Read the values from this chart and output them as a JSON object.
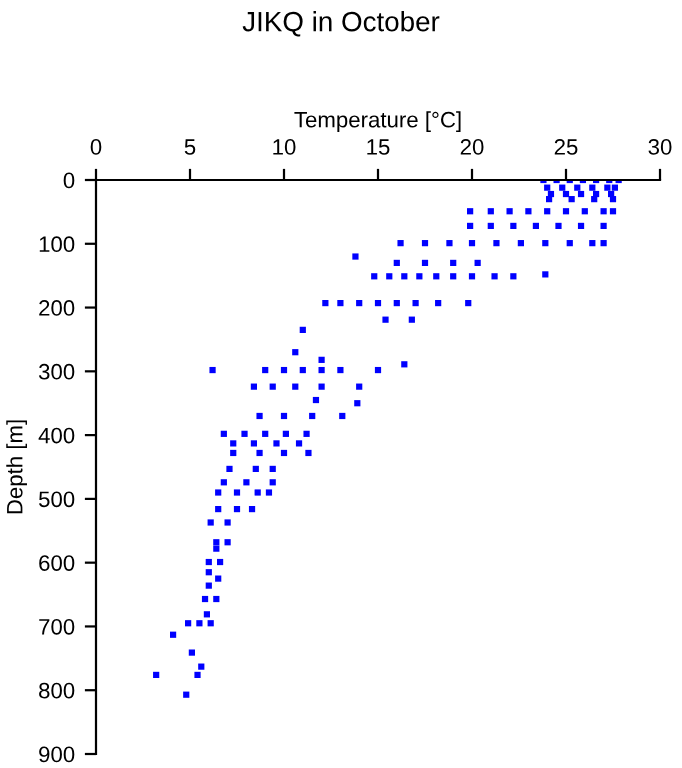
{
  "chart_data": {
    "type": "scatter",
    "title": "JIKQ in October",
    "xlabel": "Temperature [°C]",
    "ylabel": "Depth [m]",
    "xlim": [
      0,
      30
    ],
    "xticks": [
      0,
      5,
      10,
      15,
      20,
      25,
      30
    ],
    "ylim": [
      900,
      0
    ],
    "yticks": [
      0,
      100,
      200,
      300,
      400,
      500,
      600,
      700,
      800,
      900
    ],
    "grid": false,
    "marker": "square",
    "legend": false,
    "series": [
      {
        "color": "#0000ff",
        "x": [
          23.8,
          24.5,
          25.2,
          25.9,
          26.6,
          27.3,
          27.8,
          24.0,
          24.8,
          25.6,
          26.4,
          27.2,
          27.6,
          24.2,
          25.0,
          25.8,
          26.6,
          27.4,
          24.1,
          25.3,
          26.5,
          27.5,
          19.9,
          21.0,
          22.0,
          23.0,
          24.0,
          25.0,
          26.0,
          27.0,
          27.5,
          19.9,
          21.0,
          22.2,
          23.4,
          24.6,
          25.8,
          27.0,
          16.2,
          17.5,
          18.8,
          20.0,
          21.3,
          22.6,
          23.9,
          25.2,
          26.4,
          27.0,
          13.8,
          16.0,
          17.5,
          19.0,
          20.3,
          14.8,
          15.6,
          16.4,
          17.2,
          18.1,
          19.0,
          20.0,
          21.2,
          22.2,
          23.9,
          12.2,
          13.0,
          14.0,
          15.0,
          16.0,
          17.0,
          18.2,
          19.8,
          15.4,
          16.8,
          11.0,
          10.6,
          12.0,
          6.2,
          9.0,
          10.0,
          11.0,
          12.0,
          13.0,
          15.0,
          16.4,
          8.4,
          9.4,
          10.6,
          12.0,
          14.0,
          11.7,
          13.9,
          8.7,
          10.0,
          11.5,
          13.1,
          6.8,
          7.9,
          9.0,
          10.1,
          11.2,
          7.3,
          8.4,
          9.6,
          10.8,
          7.3,
          8.7,
          10.0,
          11.3,
          7.1,
          8.5,
          9.4,
          6.8,
          8.0,
          9.4,
          6.5,
          7.5,
          8.6,
          9.2,
          6.5,
          7.5,
          8.3,
          6.1,
          7.0,
          6.4,
          7.0,
          6.4,
          6.0,
          6.6,
          6.0,
          6.5,
          6.0,
          5.8,
          6.4,
          5.9,
          4.9,
          5.5,
          6.1,
          4.1,
          5.1,
          5.6,
          3.2,
          5.4,
          4.8
        ],
        "values": [
          0,
          0,
          0,
          0,
          0,
          0,
          0,
          12,
          12,
          12,
          12,
          12,
          12,
          22,
          22,
          22,
          22,
          22,
          30,
          30,
          30,
          30,
          49,
          49,
          49,
          49,
          49,
          49,
          49,
          49,
          49,
          72,
          72,
          72,
          72,
          72,
          72,
          72,
          99,
          99,
          99,
          99,
          99,
          99,
          99,
          99,
          99,
          99,
          120,
          130,
          130,
          130,
          130,
          151,
          151,
          151,
          151,
          151,
          151,
          151,
          151,
          151,
          148,
          193,
          193,
          193,
          193,
          193,
          193,
          193,
          193,
          219,
          219,
          235,
          270,
          282,
          298,
          298,
          298,
          298,
          298,
          298,
          298,
          289,
          324,
          324,
          324,
          324,
          324,
          345,
          350,
          370,
          370,
          370,
          370,
          398,
          398,
          398,
          398,
          398,
          413,
          413,
          413,
          413,
          428,
          428,
          428,
          428,
          453,
          453,
          453,
          474,
          474,
          474,
          490,
          490,
          490,
          490,
          516,
          516,
          516,
          537,
          537,
          568,
          568,
          578,
          599,
          599,
          615,
          625,
          636,
          657,
          657,
          681,
          695,
          695,
          695,
          713,
          741,
          763,
          776,
          776,
          807
        ]
      }
    ]
  }
}
